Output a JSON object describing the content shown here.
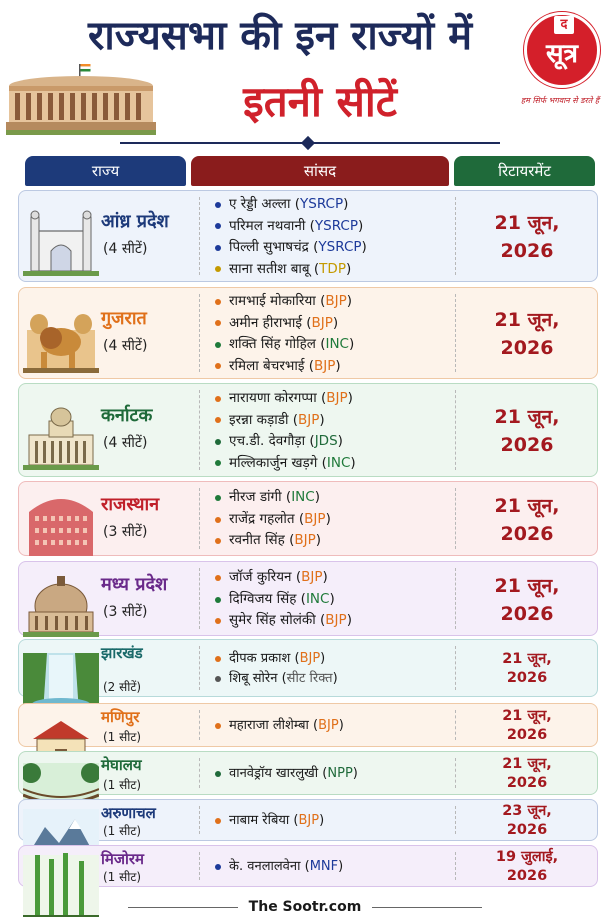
{
  "header": {
    "title_line1": "राज्यसभा की इन राज्यों में",
    "title_line2": "इतनी सीटें",
    "logo_letter": "द",
    "logo_word": "सूत्र",
    "tagline": "हम सिर्फ भगवान से डरते हैं"
  },
  "columns": {
    "state": "राज्य",
    "mps": "सांसद",
    "retirement": "रिटायरमेंट"
  },
  "rows": [
    {
      "state": "आंध्र प्रदेश",
      "seats": "(4 सीटें)",
      "state_color": "#1d3a7a",
      "mps": [
        {
          "name": "ए रेड्डी अल्ला",
          "party": "YSRCP"
        },
        {
          "name": "परिमल नथवानी",
          "party": "YSRCP"
        },
        {
          "name": "पिल्ली सुभाषचंद्र",
          "party": "YSRCP"
        },
        {
          "name": "साना सतीश बाबू",
          "party": "TDP"
        }
      ],
      "ret_line1": "21 जून,",
      "ret_line2": "2026"
    },
    {
      "state": "गुजरात",
      "seats": "(4 सीटें)",
      "state_color": "#e0701a",
      "mps": [
        {
          "name": "रामभाई मोकारिया",
          "party": "BJP"
        },
        {
          "name": "अमीन हीराभाई",
          "party": "BJP"
        },
        {
          "name": "शक्ति सिंह गोहिल",
          "party": "INC"
        },
        {
          "name": "रमिला बेचरभाई",
          "party": "BJP"
        }
      ],
      "ret_line1": "21 जून,",
      "ret_line2": "2026"
    },
    {
      "state": "कर्नाटक",
      "seats": "(4 सीटें)",
      "state_color": "#1f6a3a",
      "mps": [
        {
          "name": "नारायणा कोरगप्पा",
          "party": "BJP"
        },
        {
          "name": "इरन्ना कड़ाडी",
          "party": "BJP"
        },
        {
          "name": "एच.डी. देवगौड़ा",
          "party": "JDS"
        },
        {
          "name": "मल्लिकार्जुन खड़गे",
          "party": "INC"
        }
      ],
      "ret_line1": "21 जून,",
      "ret_line2": "2026"
    },
    {
      "state": "राजस्थान",
      "seats": "(3 सीटें)",
      "state_color": "#c0202a",
      "mps": [
        {
          "name": "नीरज डांगी",
          "party": "INC"
        },
        {
          "name": "राजेंद्र गहलोत",
          "party": "BJP"
        },
        {
          "name": "रवनीत सिंह",
          "party": "BJP"
        }
      ],
      "ret_line1": "21 जून,",
      "ret_line2": "2026"
    },
    {
      "state": "मध्य प्रदेश",
      "seats": "(3 सीटें)",
      "state_color": "#6a2a8a",
      "mps": [
        {
          "name": "जॉर्ज कुरियन",
          "party": "BJP"
        },
        {
          "name": "दिग्विजय सिंह",
          "party": "INC"
        },
        {
          "name": "सुमेर सिंह सोलंकी",
          "party": "BJP"
        }
      ],
      "ret_line1": "21 जून,",
      "ret_line2": "2026"
    },
    {
      "state": "झारखंड",
      "seats": "(2 सीटें)",
      "state_color": "#1a6a6a",
      "mps": [
        {
          "name": "दीपक प्रकाश",
          "party": "BJP"
        },
        {
          "name": "शिबू सोरेन",
          "party": "सीट रिक्त"
        }
      ],
      "ret_line1": "21 जून,",
      "ret_line2": "2026"
    },
    {
      "state": "मणिपुर",
      "seats": "(1 सीट)",
      "state_color": "#e0701a",
      "mps": [
        {
          "name": "महाराजा लीशेम्बा",
          "party": "BJP"
        }
      ],
      "ret_line1": "21 जून,",
      "ret_line2": "2026"
    },
    {
      "state": "मेघालय",
      "seats": "(1 सीट)",
      "state_color": "#1f6a3a",
      "mps": [
        {
          "name": "वानवेड्रॉय खारलुखी",
          "party": "NPP"
        }
      ],
      "ret_line1": "21 जून,",
      "ret_line2": "2026"
    },
    {
      "state": "अरुणाचल",
      "seats": "(1 सीट)",
      "state_color": "#1d3a7a",
      "mps": [
        {
          "name": "नाबाम रेबिया",
          "party": "BJP"
        }
      ],
      "ret_line1": "23 जून,",
      "ret_line2": "2026"
    },
    {
      "state": "मिजोरम",
      "seats": "(1 सीट)",
      "state_color": "#6a2a8a",
      "mps": [
        {
          "name": "के. वनलालवेना",
          "party": "MNF"
        }
      ],
      "ret_line1": "19 जुलाई,",
      "ret_line2": "2026"
    }
  ],
  "footer": {
    "brand": "The Sootr.com"
  }
}
